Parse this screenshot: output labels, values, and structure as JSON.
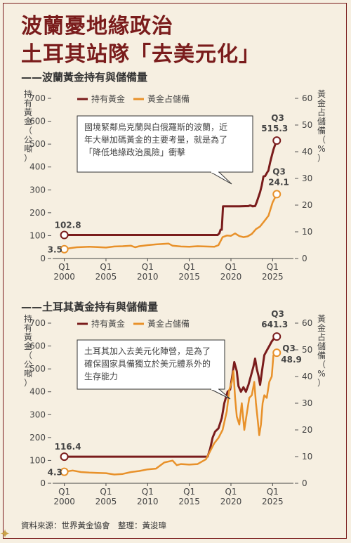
{
  "title_line1": "波蘭憂地緣政治",
  "title_line2": "土耳其站隊「去美元化」",
  "source": "資料來源：世界黃金協會　整理：黃浚瑋",
  "colors": {
    "gold": "#7a1c1c",
    "share": "#e8912a",
    "title": "#7a1c1c"
  },
  "chart_data": [
    {
      "type": "line",
      "subtitle": "——波蘭黃金持有與儲備量",
      "left_ylabel": "持有黃金（公噸）",
      "right_ylabel": "黃金占儲備（%）",
      "left_ylim": [
        0,
        700
      ],
      "right_ylim": [
        0,
        60
      ],
      "left_ticks": [
        "0",
        "100",
        "200",
        "300",
        "400",
        "500",
        "600",
        "700"
      ],
      "right_ticks": [
        "0",
        "10",
        "20",
        "30",
        "40",
        "50",
        "60"
      ],
      "x_ticks": [
        {
          "q": "Q1",
          "y": "2000"
        },
        {
          "q": "Q1",
          "y": "2005"
        },
        {
          "q": "Q1",
          "y": "2010"
        },
        {
          "q": "Q1",
          "y": "2015"
        },
        {
          "q": "Q1",
          "y": "2020"
        },
        {
          "q": "Q1",
          "y": "2025"
        }
      ],
      "xlim": [
        1998.6,
        2027.5
      ],
      "legend": [
        "持有黃金",
        "黃金占儲備"
      ],
      "annotation": "國境緊鄰烏克蘭與白俄羅斯的波蘭，近年大舉加碼黃金的主要考量，就是為了「降低地緣政治風險」衝擊",
      "start_label_gold": "102.8",
      "start_label_share": "3.5",
      "end_label_q": "Q3",
      "end_label_gold": "515.3",
      "end_label_share": "24.1",
      "series": [
        {
          "name": "持有黃金",
          "axis": "left",
          "points": [
            [
              2000,
              102.8
            ],
            [
              2018.4,
              102.8
            ],
            [
              2018.6,
              110
            ],
            [
              2018.75,
              126
            ],
            [
              2018.9,
              126
            ],
            [
              2019.05,
              228
            ],
            [
              2020,
              228
            ],
            [
              2021,
              228
            ],
            [
              2022.1,
              229
            ],
            [
              2022.3,
              232
            ],
            [
              2022.6,
              228
            ],
            [
              2022.9,
              229
            ],
            [
              2023.1,
              247
            ],
            [
              2023.3,
              269
            ],
            [
              2023.5,
              290
            ],
            [
              2023.7,
              320
            ],
            [
              2023.9,
              359
            ],
            [
              2024.1,
              360
            ],
            [
              2024.3,
              373
            ],
            [
              2024.5,
              385
            ],
            [
              2024.7,
              420
            ],
            [
              2024.9,
              448
            ],
            [
              2025.1,
              476
            ],
            [
              2025.3,
              497
            ],
            [
              2025.5,
              515.3
            ]
          ]
        },
        {
          "name": "黃金占儲備",
          "axis": "right",
          "points": [
            [
              2000,
              3.5
            ],
            [
              2000.5,
              3.8
            ],
            [
              2001,
              4.0
            ],
            [
              2001.5,
              4.2
            ],
            [
              2002,
              4.3
            ],
            [
              2003,
              4.4
            ],
            [
              2004,
              4.3
            ],
            [
              2005,
              4.1
            ],
            [
              2006,
              4.5
            ],
            [
              2007,
              4.6
            ],
            [
              2008,
              4.8
            ],
            [
              2008.5,
              4.2
            ],
            [
              2009,
              4.6
            ],
            [
              2010,
              5.0
            ],
            [
              2011,
              5.3
            ],
            [
              2012,
              5.5
            ],
            [
              2012.5,
              5.6
            ],
            [
              2013,
              4.8
            ],
            [
              2014,
              4.5
            ],
            [
              2015,
              4.4
            ],
            [
              2016,
              4.6
            ],
            [
              2017,
              4.5
            ],
            [
              2018,
              4.4
            ],
            [
              2018.5,
              5.0
            ],
            [
              2019,
              8.0
            ],
            [
              2019.5,
              8.6
            ],
            [
              2020,
              8.5
            ],
            [
              2020.5,
              9.4
            ],
            [
              2021,
              8.4
            ],
            [
              2021.5,
              8.0
            ],
            [
              2022,
              8.3
            ],
            [
              2022.5,
              9.2
            ],
            [
              2023,
              11
            ],
            [
              2023.5,
              12
            ],
            [
              2024,
              14
            ],
            [
              2024.5,
              16
            ],
            [
              2025,
              21
            ],
            [
              2025.5,
              24.1
            ]
          ]
        }
      ]
    },
    {
      "type": "line",
      "subtitle": "——土耳其黃金持有與儲備量",
      "left_ylabel": "持有黃金（公噸）",
      "right_ylabel": "黃金占儲備（%）",
      "left_ylim": [
        0,
        700
      ],
      "right_ylim": [
        0,
        60
      ],
      "left_ticks": [
        "0",
        "100",
        "200",
        "300",
        "400",
        "500",
        "600",
        "700"
      ],
      "right_ticks": [
        "0",
        "10",
        "20",
        "30",
        "40",
        "50",
        "60"
      ],
      "x_ticks": [
        {
          "q": "Q1",
          "y": "2000"
        },
        {
          "q": "Q1",
          "y": "2005"
        },
        {
          "q": "Q1",
          "y": "2010"
        },
        {
          "q": "Q1",
          "y": "2015"
        },
        {
          "q": "Q1",
          "y": "2020"
        },
        {
          "q": "Q1",
          "y": "2025"
        }
      ],
      "xlim": [
        1998.6,
        2027.5
      ],
      "legend": [
        "持有黃金",
        "黃金占儲備"
      ],
      "annotation": "土耳其加入去美元化陣營，是為了確保國家具備獨立於美元體系外的生存能力",
      "start_label_gold": "116.4",
      "start_label_share": "4.3",
      "end_label_q": "Q3",
      "end_label_gold": "641.3",
      "end_label_share": "48.9",
      "series": [
        {
          "name": "持有黃金",
          "axis": "left",
          "points": [
            [
              2000,
              116.4
            ],
            [
              2017.2,
              116.4
            ],
            [
              2017.5,
              150
            ],
            [
              2017.8,
              200
            ],
            [
              2018.1,
              226
            ],
            [
              2018.5,
              240
            ],
            [
              2018.9,
              285
            ],
            [
              2019.2,
              350
            ],
            [
              2019.6,
              400
            ],
            [
              2019.9,
              410
            ],
            [
              2020.2,
              480
            ],
            [
              2020.4,
              530
            ],
            [
              2020.7,
              490
            ],
            [
              2020.9,
              425
            ],
            [
              2021.2,
              400
            ],
            [
              2021.5,
              420
            ],
            [
              2021.8,
              400
            ],
            [
              2022.1,
              430
            ],
            [
              2022.4,
              470
            ],
            [
              2022.7,
              510
            ],
            [
              2022.9,
              545
            ],
            [
              2023.1,
              500
            ],
            [
              2023.3,
              470
            ],
            [
              2023.5,
              430
            ],
            [
              2023.8,
              510
            ],
            [
              2024.0,
              560
            ],
            [
              2024.3,
              580
            ],
            [
              2024.6,
              600
            ],
            [
              2024.9,
              620
            ],
            [
              2025.2,
              635
            ],
            [
              2025.5,
              641.3
            ]
          ]
        },
        {
          "name": "黃金占儲備",
          "axis": "right",
          "points": [
            [
              2000,
              4.3
            ],
            [
              2001,
              4.8
            ],
            [
              2002,
              4.2
            ],
            [
              2003,
              4.0
            ],
            [
              2004,
              3.9
            ],
            [
              2005,
              3.8
            ],
            [
              2006,
              3.3
            ],
            [
              2007,
              3.5
            ],
            [
              2008,
              4.2
            ],
            [
              2009,
              4.6
            ],
            [
              2010,
              5.2
            ],
            [
              2011,
              5.5
            ],
            [
              2012,
              7.8
            ],
            [
              2013,
              8.5
            ],
            [
              2013.5,
              6.8
            ],
            [
              2014,
              7.2
            ],
            [
              2015,
              7.0
            ],
            [
              2016,
              7.2
            ],
            [
              2017,
              9.0
            ],
            [
              2017.5,
              12
            ],
            [
              2018,
              15
            ],
            [
              2018.5,
              17
            ],
            [
              2019,
              20
            ],
            [
              2019.5,
              27
            ],
            [
              2019.8,
              35
            ],
            [
              2020.1,
              38
            ],
            [
              2020.3,
              42
            ],
            [
              2020.5,
              32
            ],
            [
              2020.7,
              25
            ],
            [
              2021,
              22
            ],
            [
              2021.3,
              30
            ],
            [
              2021.6,
              20
            ],
            [
              2021.9,
              26
            ],
            [
              2022.2,
              32
            ],
            [
              2022.5,
              33
            ],
            [
              2022.8,
              38
            ],
            [
              2023,
              30
            ],
            [
              2023.2,
              24
            ],
            [
              2023.4,
              18
            ],
            [
              2023.6,
              22
            ],
            [
              2023.8,
              30
            ],
            [
              2024,
              33
            ],
            [
              2024.3,
              32
            ],
            [
              2024.6,
              38
            ],
            [
              2024.9,
              40
            ],
            [
              2025.1,
              48
            ],
            [
              2025.5,
              48.9
            ]
          ]
        }
      ]
    }
  ]
}
